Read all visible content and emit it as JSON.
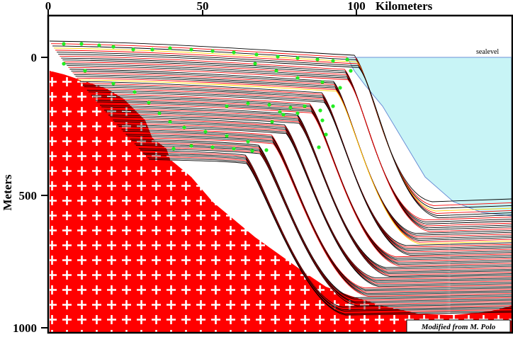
{
  "top_axis": {
    "ticks": [
      "0",
      "50",
      "100"
    ],
    "unit_label": "Kilometers"
  },
  "left_axis": {
    "ticks": [
      "0",
      "500",
      "1000"
    ],
    "title": "Meters"
  },
  "sealevel_label": "sealevel",
  "credit": "Modified from M. Polo",
  "colors": {
    "basement": "#ff0000",
    "sea": "#c8f4f6",
    "black_horizon": "#000000",
    "red_horizon": "#ff0000",
    "green_marker": "#22ee22",
    "yellow_horizon": "#ffd400"
  },
  "icons": {
    "basement_pattern": "white-plus-signs"
  }
}
